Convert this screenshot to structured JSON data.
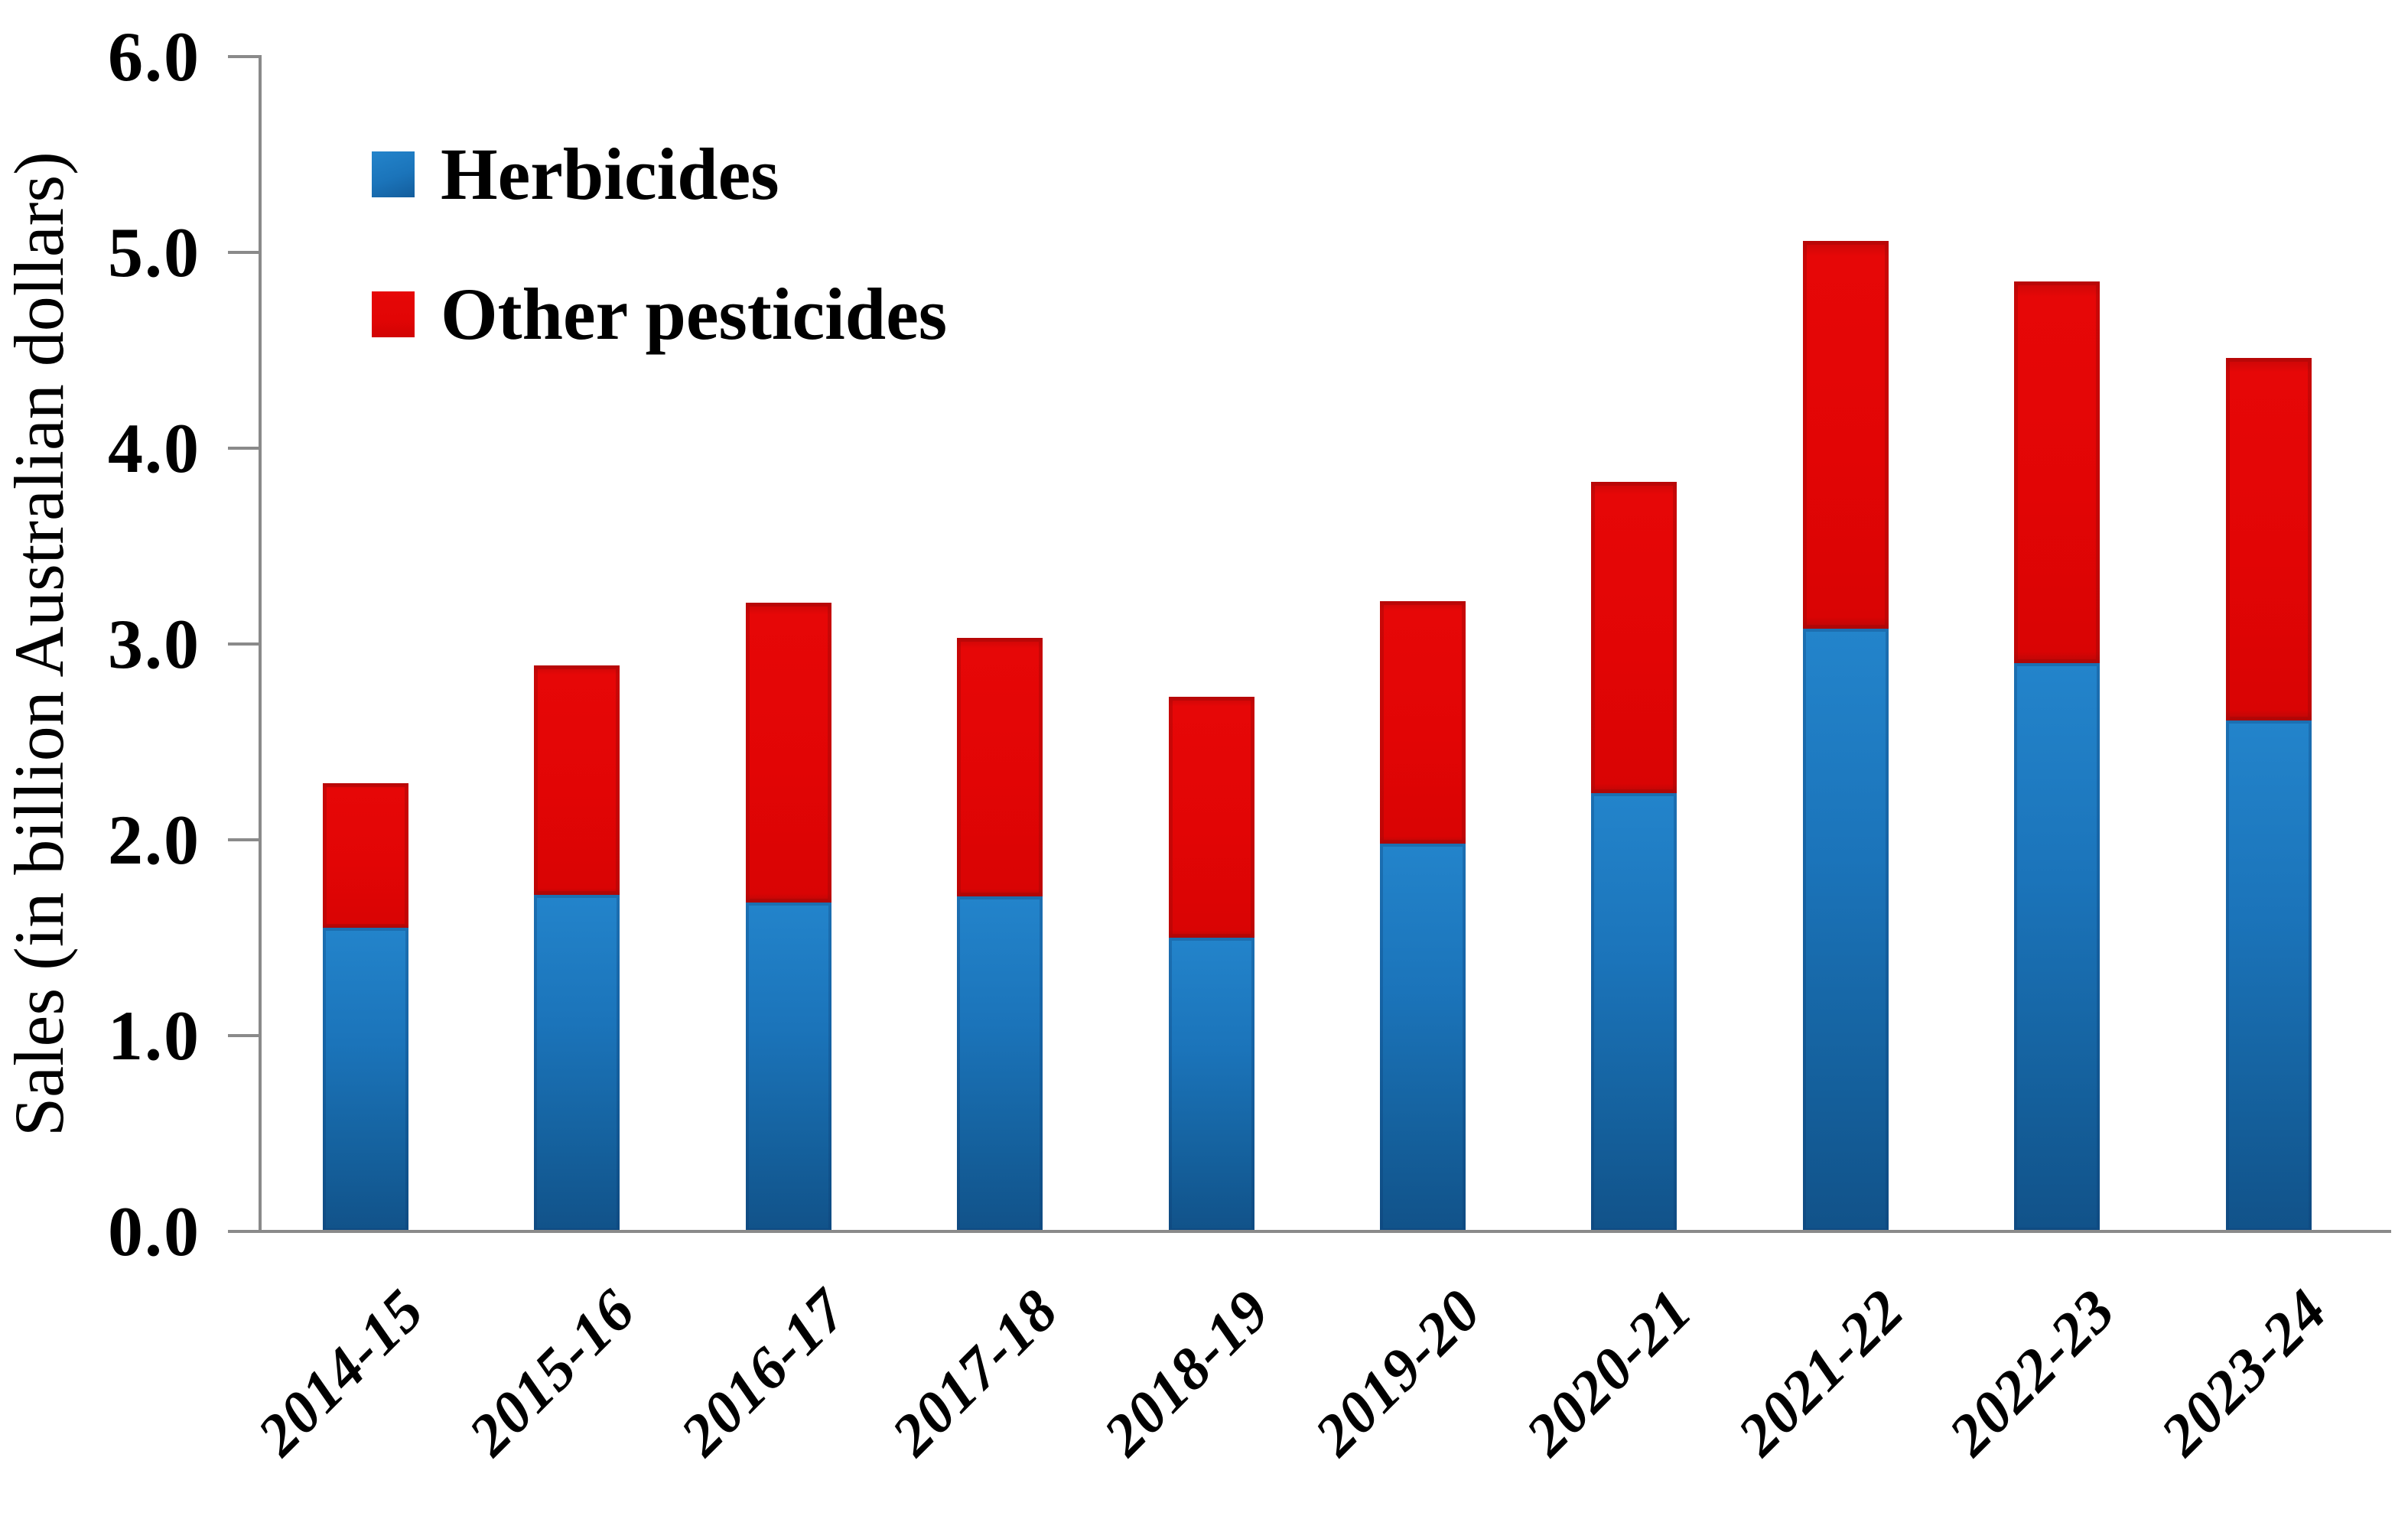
{
  "chart_data": {
    "type": "bar",
    "stacked": true,
    "title": "",
    "xlabel": "",
    "ylabel": "Sales (in billion Australian dollars)",
    "categories": [
      "2014-15",
      "2015-16",
      "2016-17",
      "2017-18",
      "2018-19",
      "2019-20",
      "2020-21",
      "2021-22",
      "2022-23",
      "2023-24"
    ],
    "series": [
      {
        "name": "Herbicides",
        "color": "#1b74ba",
        "values": [
          1.55,
          1.72,
          1.68,
          1.71,
          1.5,
          1.98,
          2.24,
          3.08,
          2.9,
          2.61
        ]
      },
      {
        "name": "Other pesticides",
        "color": "#e20505",
        "values": [
          0.74,
          1.17,
          1.53,
          1.32,
          1.23,
          1.24,
          1.59,
          1.98,
          1.95,
          1.85
        ]
      }
    ],
    "totals": [
      2.29,
      2.89,
      3.21,
      3.03,
      2.73,
      3.22,
      3.83,
      5.06,
      4.85,
      4.46
    ],
    "ylim": [
      0,
      6
    ],
    "ytick_step": 1.0,
    "ytick_labels": [
      "0.0",
      "1.0",
      "2.0",
      "3.0",
      "4.0",
      "5.0",
      "6.0"
    ],
    "grid": false,
    "legend_position": "top-left-inside",
    "axis_color": "#8a8a8a",
    "text_color": "#000000",
    "background_color": "#ffffff"
  }
}
